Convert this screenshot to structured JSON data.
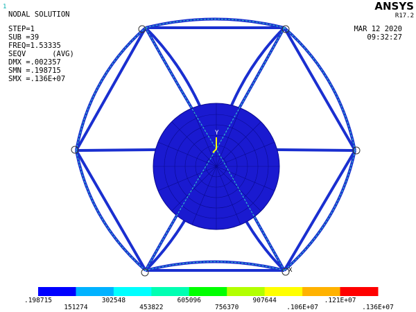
{
  "header": {
    "window_number": "1",
    "title": "NODAL SOLUTION",
    "info": [
      "STEP=1",
      "SUB =39",
      "FREQ=1.53335",
      "SEQV      (AVG)",
      "DMX =.002357",
      "SMN =.198715",
      "SMX =.136E+07"
    ],
    "brand": "ANSYS",
    "version": "R17.2",
    "date": "MAR 12 2020",
    "time": "09:32:27"
  },
  "triad": {
    "y_axis": "Y",
    "x_axis": "X"
  },
  "legend": {
    "colors": [
      "#0000ff",
      "#00b2ff",
      "#00ffff",
      "#00ffb2",
      "#00ff00",
      "#b2ff00",
      "#ffff00",
      "#ffb200",
      "#ff0000"
    ],
    "labels": [
      ".198715",
      "151274",
      "302548",
      "453822",
      "605096",
      "756370",
      "907644",
      ".106E+07",
      ".121E+07",
      ".136E+07"
    ]
  }
}
